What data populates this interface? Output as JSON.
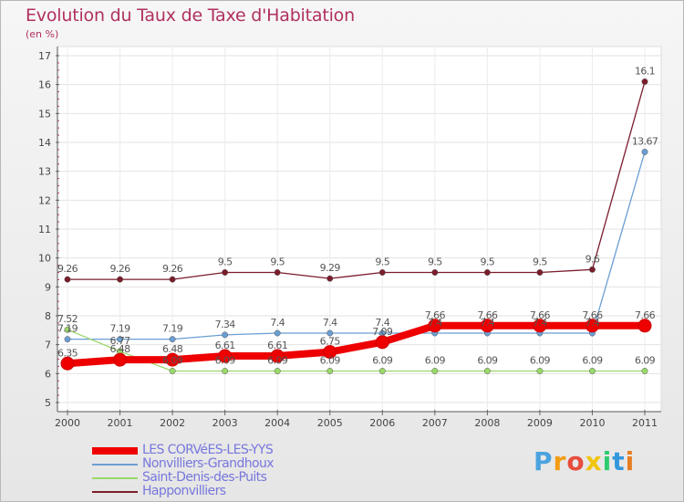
{
  "chart_data": {
    "type": "line",
    "title": "Evolution du Taux de Taxe d'Habitation",
    "subtitle": "(en %)",
    "xlabel": "",
    "ylabel": "",
    "ylim": [
      5,
      17
    ],
    "yticks": [
      5,
      6,
      7,
      8,
      9,
      10,
      11,
      12,
      13,
      14,
      15,
      16,
      17
    ],
    "x": [
      "2000",
      "2001",
      "2002",
      "2003",
      "2004",
      "2005",
      "2006",
      "2007",
      "2008",
      "2009",
      "2010",
      "2011"
    ],
    "grid": true,
    "series": [
      {
        "name": "Happonvilliers",
        "color": "#7b1c2c",
        "values": [
          9.26,
          9.26,
          9.26,
          9.5,
          9.5,
          9.29,
          9.5,
          9.5,
          9.5,
          9.5,
          9.6,
          16.1
        ],
        "labels": [
          "9.26",
          "9.26",
          "9.26",
          "9.5",
          "9.5",
          "9.29",
          "9.5",
          "9.5",
          "9.5",
          "9.5",
          "9.6",
          "16.1"
        ]
      },
      {
        "name": "Nonvilliers-Grandhoux",
        "color": "#6a9ed2",
        "values": [
          7.19,
          7.19,
          7.19,
          7.34,
          7.4,
          7.4,
          7.4,
          7.4,
          7.4,
          7.4,
          7.4,
          13.67
        ],
        "labels": [
          "7.19",
          "7.19",
          "7.19",
          "7.34",
          "7.4",
          "7.4",
          "7.4",
          "7.4",
          "7.4",
          "7.4",
          "7.4",
          "13.67"
        ]
      },
      {
        "name": "Saint-Denis-des-Puits",
        "color": "#9ad86a",
        "values": [
          7.52,
          6.77,
          6.09,
          6.09,
          6.09,
          6.09,
          6.09,
          6.09,
          6.09,
          6.09,
          6.09,
          6.09
        ],
        "labels": [
          "7.52",
          "6.77",
          "6.09",
          "6.09",
          "6.09",
          "6.09",
          "6.09",
          "6.09",
          "6.09",
          "6.09",
          "6.09",
          "6.09"
        ]
      },
      {
        "name": "LES CORVéES-LES-YYS",
        "color": "#ee0000",
        "values": [
          6.35,
          6.48,
          6.48,
          6.61,
          6.61,
          6.75,
          7.09,
          7.66,
          7.66,
          7.66,
          7.66,
          7.66
        ],
        "labels": [
          "6.35",
          "6.48",
          "6.48",
          "6.61",
          "6.61",
          "6.75",
          "7.09",
          "7.66",
          "7.66",
          "7.66",
          "7.66",
          "7.66"
        ]
      }
    ],
    "legend": [
      "LES CORVéES-LES-YYS",
      "Nonvilliers-Grandhoux",
      "Saint-Denis-des-Puits",
      "Happonvilliers"
    ],
    "legend_position": "bottom-left"
  },
  "logo": {
    "text": "Proxiti",
    "letters": [
      "P",
      "r",
      "o",
      "x",
      "i",
      "t",
      "i"
    ],
    "colors": [
      "#4aa3df",
      "#f39c12",
      "#e74c3c",
      "#f1c40f",
      "#2ecc71",
      "#3498db",
      "#e67e22"
    ]
  }
}
